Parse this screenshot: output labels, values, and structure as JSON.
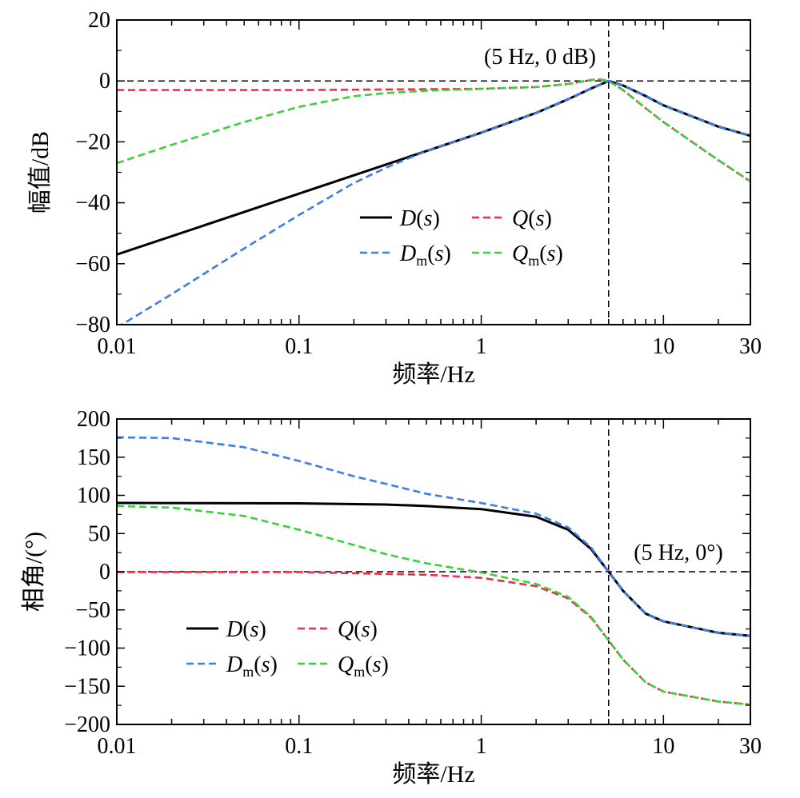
{
  "chart_data": [
    {
      "type": "line",
      "xlabel": "频率/Hz",
      "ylabel": "幅值/dB",
      "xscale": "log",
      "xlim": [
        0.01,
        30
      ],
      "ylim": [
        -80,
        20
      ],
      "x_ticks": [
        0.01,
        0.1,
        1,
        10,
        30
      ],
      "x_tick_labels": [
        "0.01",
        "0.1",
        "1",
        "10",
        "30"
      ],
      "y_ticks": [
        20,
        0,
        -20,
        -40,
        -60,
        -80
      ],
      "y_tick_labels": [
        "20",
        "0",
        "−20",
        "−40",
        "−60",
        "−80"
      ],
      "reference_lines": {
        "vertical_x": 5,
        "horizontal_y": 0
      },
      "annotation": "(5 Hz, 0 dB)",
      "legend_position": "lower-center",
      "series": [
        {
          "name": "D(s)",
          "base": "D",
          "sub": "",
          "color": "#000000",
          "dashed": false,
          "x": [
            0.01,
            0.1,
            1,
            2,
            3,
            4,
            5,
            6,
            8,
            10,
            20,
            30
          ],
          "y": [
            -57,
            -37,
            -17,
            -10.5,
            -6,
            -2.5,
            0,
            -1.5,
            -5,
            -8,
            -15,
            -18
          ]
        },
        {
          "name": "Dm(s)",
          "base": "D",
          "sub": "m",
          "color": "#3d7ee6",
          "dashed": true,
          "x": [
            0.01,
            0.02,
            0.05,
            0.1,
            0.2,
            0.3,
            0.5,
            1,
            2,
            3,
            4,
            5,
            6,
            8,
            10,
            20,
            30
          ],
          "y": [
            -81,
            -70,
            -55,
            -44,
            -33.5,
            -28.5,
            -23,
            -17,
            -10.5,
            -6,
            -2.5,
            0,
            -1.5,
            -5,
            -8,
            -15,
            -18
          ]
        },
        {
          "name": "Q(s)",
          "base": "Q",
          "sub": "",
          "color": "#e8314a",
          "dashed": true,
          "x": [
            0.01,
            0.1,
            1,
            2,
            3,
            4,
            4.5,
            5,
            6,
            8,
            10,
            20,
            30
          ],
          "y": [
            -3,
            -3,
            -2.6,
            -2,
            -1,
            0.3,
            0.5,
            0,
            -3,
            -9,
            -13.5,
            -26,
            -33
          ]
        },
        {
          "name": "Qm(s)",
          "base": "Q",
          "sub": "m",
          "color": "#3ccf3c",
          "dashed": true,
          "x": [
            0.01,
            0.02,
            0.05,
            0.1,
            0.2,
            0.3,
            0.5,
            1,
            2,
            3,
            4,
            4.5,
            5,
            6,
            8,
            10,
            20,
            30
          ],
          "y": [
            -27,
            -21,
            -13.5,
            -8.5,
            -5,
            -4,
            -3.2,
            -2.6,
            -2,
            -1,
            0.3,
            0.5,
            0,
            -3,
            -9,
            -13.5,
            -26,
            -33
          ]
        }
      ]
    },
    {
      "type": "line",
      "xlabel": "频率/Hz",
      "ylabel": "相角/(°)",
      "xscale": "log",
      "xlim": [
        0.01,
        30
      ],
      "ylim": [
        -200,
        200
      ],
      "x_ticks": [
        0.01,
        0.1,
        1,
        10,
        30
      ],
      "x_tick_labels": [
        "0.01",
        "0.1",
        "1",
        "10",
        "30"
      ],
      "y_ticks": [
        200,
        150,
        100,
        50,
        0,
        -50,
        -100,
        -150,
        -200
      ],
      "y_tick_labels": [
        "200",
        "150",
        "100",
        "50",
        "0",
        "−50",
        "−100",
        "−150",
        "−200"
      ],
      "reference_lines": {
        "vertical_x": 5,
        "horizontal_y": 0
      },
      "annotation": "(5 Hz, 0°)",
      "legend_position": "lower-left",
      "series": [
        {
          "name": "D(s)",
          "base": "D",
          "sub": "",
          "color": "#000000",
          "dashed": false,
          "x": [
            0.01,
            0.1,
            0.3,
            0.5,
            1,
            2,
            3,
            4,
            5,
            6,
            8,
            10,
            20,
            30
          ],
          "y": [
            90,
            89.5,
            88,
            86,
            82,
            72,
            55,
            30,
            0,
            -25,
            -55,
            -65,
            -80,
            -84
          ]
        },
        {
          "name": "Dm(s)",
          "base": "D",
          "sub": "m",
          "color": "#3d7ee6",
          "dashed": true,
          "x": [
            0.01,
            0.02,
            0.05,
            0.1,
            0.2,
            0.3,
            0.5,
            1,
            2,
            3,
            4,
            5,
            6,
            8,
            10,
            20,
            30
          ],
          "y": [
            176,
            175,
            163,
            145,
            125,
            115,
            102,
            90,
            76,
            58,
            32,
            0,
            -25,
            -55,
            -65,
            -80,
            -84
          ]
        },
        {
          "name": "Q(s)",
          "base": "Q",
          "sub": "",
          "color": "#e8314a",
          "dashed": true,
          "x": [
            0.01,
            0.1,
            0.5,
            1,
            2,
            3,
            4,
            5,
            6,
            8,
            10,
            20,
            30
          ],
          "y": [
            -0.5,
            -0.5,
            -4,
            -8,
            -19,
            -35,
            -60,
            -90,
            -115,
            -145,
            -157,
            -170,
            -174
          ]
        },
        {
          "name": "Qm(s)",
          "base": "Q",
          "sub": "m",
          "color": "#3ccf3c",
          "dashed": true,
          "x": [
            0.01,
            0.02,
            0.05,
            0.1,
            0.2,
            0.3,
            0.5,
            1,
            2,
            3,
            4,
            5,
            6,
            8,
            10,
            20,
            30
          ],
          "y": [
            86,
            84,
            73,
            55,
            35,
            23,
            11,
            -1,
            -16,
            -33,
            -59,
            -90,
            -115,
            -145,
            -157,
            -170,
            -174
          ]
        }
      ]
    }
  ]
}
